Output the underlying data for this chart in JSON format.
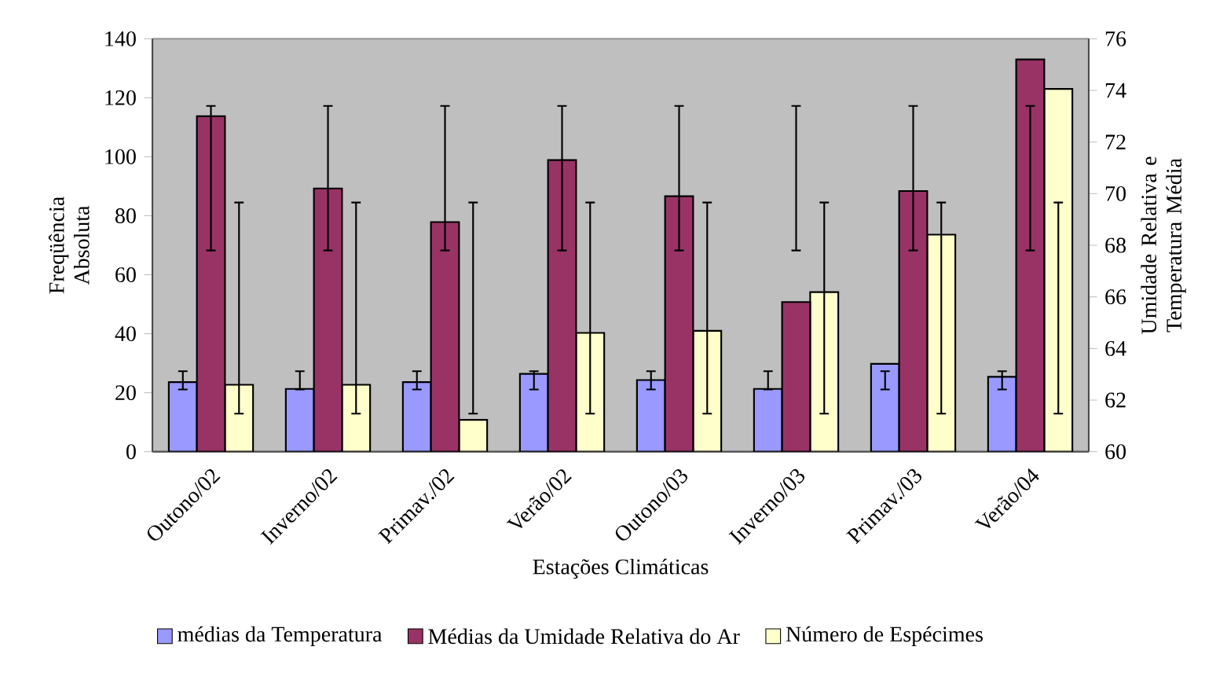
{
  "chart_data": {
    "type": "bar",
    "categories": [
      "Outono/02",
      "Inverno/02",
      "Primav./02",
      "Verão/02",
      "Outono/03",
      "Inverno/03",
      "Primav./03",
      "Verão/04"
    ],
    "xlabel": "Estações Climáticas",
    "ylabel": "Freqüência Absoluta",
    "y2label": "Umidade Relativa e Temperatura Média",
    "series": [
      {
        "name": "médias da Temperatura",
        "color": "#9999ff",
        "values": [
          23.6,
          21.3,
          23.6,
          26.4,
          24.3,
          21.3,
          29.8,
          25.4
        ],
        "errors": [
          [
            21.1,
            27.3
          ],
          [
            21.1,
            27.3
          ],
          [
            21.1,
            27.3
          ],
          [
            21.1,
            27.3
          ],
          [
            21.1,
            27.3
          ],
          [
            21.1,
            27.3
          ],
          [
            21.1,
            27.3
          ],
          [
            21.1,
            27.3
          ]
        ]
      },
      {
        "name": "Médias da Umidade Relativa do Ar",
        "color": "#993366",
        "axis": "y2",
        "values": [
          73.0,
          70.2,
          68.9,
          71.3,
          69.9,
          65.8,
          70.1,
          75.2
        ],
        "errors": [
          [
            67.8,
            73.4
          ],
          [
            67.8,
            73.4
          ],
          [
            67.8,
            73.4
          ],
          [
            67.8,
            73.4
          ],
          [
            67.8,
            73.4
          ],
          [
            67.8,
            73.4
          ],
          [
            67.8,
            73.4
          ],
          [
            67.8,
            73.4
          ]
        ]
      },
      {
        "name": "Número de Espécimes",
        "color": "#ffffcc",
        "values": [
          22.7,
          22.7,
          10.8,
          40.3,
          41.0,
          54.1,
          73.6,
          123
        ],
        "errors": [
          [
            12.9,
            84.5
          ],
          [
            12.9,
            84.5
          ],
          [
            12.9,
            84.5
          ],
          [
            12.9,
            84.5
          ],
          [
            12.9,
            84.5
          ],
          [
            12.9,
            84.5
          ],
          [
            12.9,
            84.5
          ],
          [
            12.9,
            84.5
          ]
        ]
      }
    ],
    "ylim": [
      0,
      140
    ],
    "yticks": [
      0,
      20,
      40,
      60,
      80,
      100,
      120,
      140
    ],
    "y2lim": [
      60,
      76
    ],
    "y2ticks": [
      60,
      62,
      64,
      66,
      68,
      70,
      72,
      74,
      76
    ],
    "legend": "bottom",
    "grid": false
  }
}
